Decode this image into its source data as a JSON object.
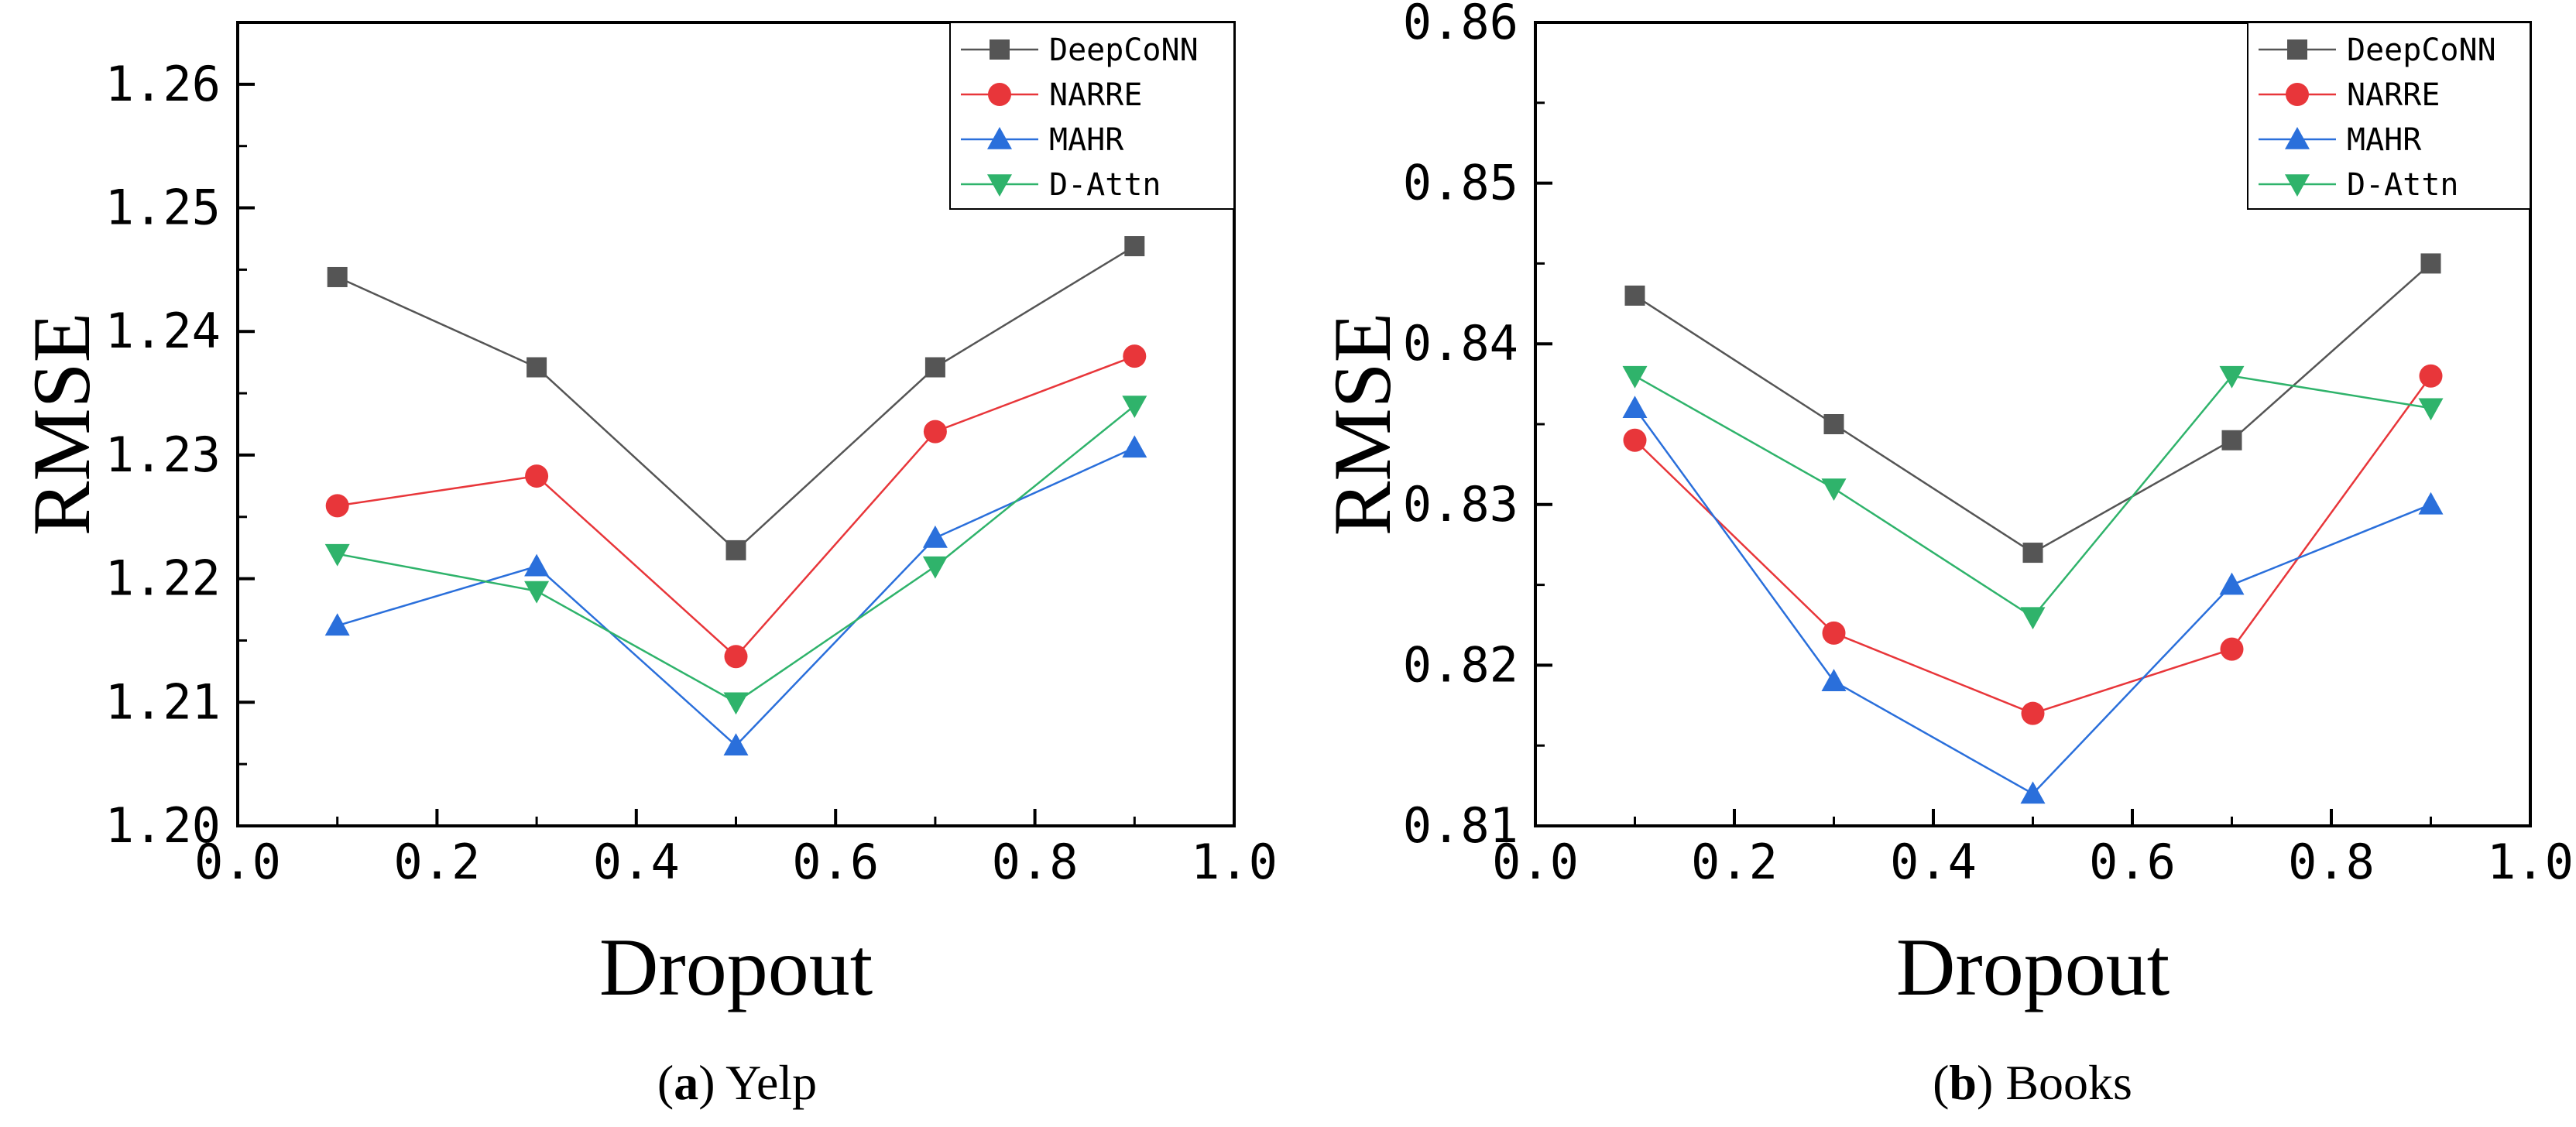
{
  "chart_data": [
    {
      "type": "line",
      "caption_letter": "a",
      "caption_text": "Yelp",
      "xlabel": "Dropout",
      "ylabel": "RMSE",
      "xlim": [
        0.0,
        1.0
      ],
      "ylim": [
        1.2,
        1.265
      ],
      "xticks": [
        "0.0",
        "0.2",
        "0.4",
        "0.6",
        "0.8",
        "1.0"
      ],
      "xtick_values": [
        0.0,
        0.2,
        0.4,
        0.6,
        0.8,
        1.0
      ],
      "yticks": [
        "1.20",
        "1.21",
        "1.22",
        "1.23",
        "1.24",
        "1.25",
        "1.26"
      ],
      "ytick_values": [
        1.2,
        1.21,
        1.22,
        1.23,
        1.24,
        1.25,
        1.26
      ],
      "legend": "top-right",
      "x": [
        0.1,
        0.3,
        0.5,
        0.7,
        0.9
      ],
      "series": [
        {
          "name": "DeepCoNN",
          "marker": "square",
          "color": "#555555",
          "values": [
            1.2444,
            1.2371,
            1.2223,
            1.2371,
            1.2469
          ]
        },
        {
          "name": "NARRE",
          "marker": "circle",
          "color": "#e8363a",
          "values": [
            1.2259,
            1.2283,
            1.2137,
            1.2319,
            1.238
          ]
        },
        {
          "name": "MAHR",
          "marker": "triangle-up",
          "color": "#2a6fdb",
          "values": [
            1.2162,
            1.221,
            1.2065,
            1.2233,
            1.2306
          ]
        },
        {
          "name": "D-Attn",
          "marker": "triangle-down",
          "color": "#2fb36b",
          "values": [
            1.222,
            1.219,
            1.21,
            1.221,
            1.234
          ]
        }
      ]
    },
    {
      "type": "line",
      "caption_letter": "b",
      "caption_text": "Books",
      "xlabel": "Dropout",
      "ylabel": "RMSE",
      "xlim": [
        0.0,
        1.0
      ],
      "ylim": [
        0.81,
        0.86
      ],
      "xticks": [
        "0.0",
        "0.2",
        "0.4",
        "0.6",
        "0.8",
        "1.0"
      ],
      "xtick_values": [
        0.0,
        0.2,
        0.4,
        0.6,
        0.8,
        1.0
      ],
      "yticks": [
        "0.81",
        "0.82",
        "0.83",
        "0.84",
        "0.85",
        "0.86"
      ],
      "ytick_values": [
        0.81,
        0.82,
        0.83,
        0.84,
        0.85,
        0.86
      ],
      "legend": "top-right",
      "x": [
        0.1,
        0.3,
        0.5,
        0.7,
        0.9
      ],
      "series": [
        {
          "name": "DeepCoNN",
          "marker": "square",
          "color": "#555555",
          "values": [
            0.843,
            0.835,
            0.827,
            0.834,
            0.845
          ]
        },
        {
          "name": "NARRE",
          "marker": "circle",
          "color": "#e8363a",
          "values": [
            0.834,
            0.822,
            0.817,
            0.821,
            0.838
          ]
        },
        {
          "name": "MAHR",
          "marker": "triangle-up",
          "color": "#2a6fdb",
          "values": [
            0.836,
            0.819,
            0.812,
            0.825,
            0.83
          ]
        },
        {
          "name": "D-Attn",
          "marker": "triangle-down",
          "color": "#2fb36b",
          "values": [
            0.838,
            0.831,
            0.823,
            0.838,
            0.836
          ]
        }
      ]
    }
  ]
}
